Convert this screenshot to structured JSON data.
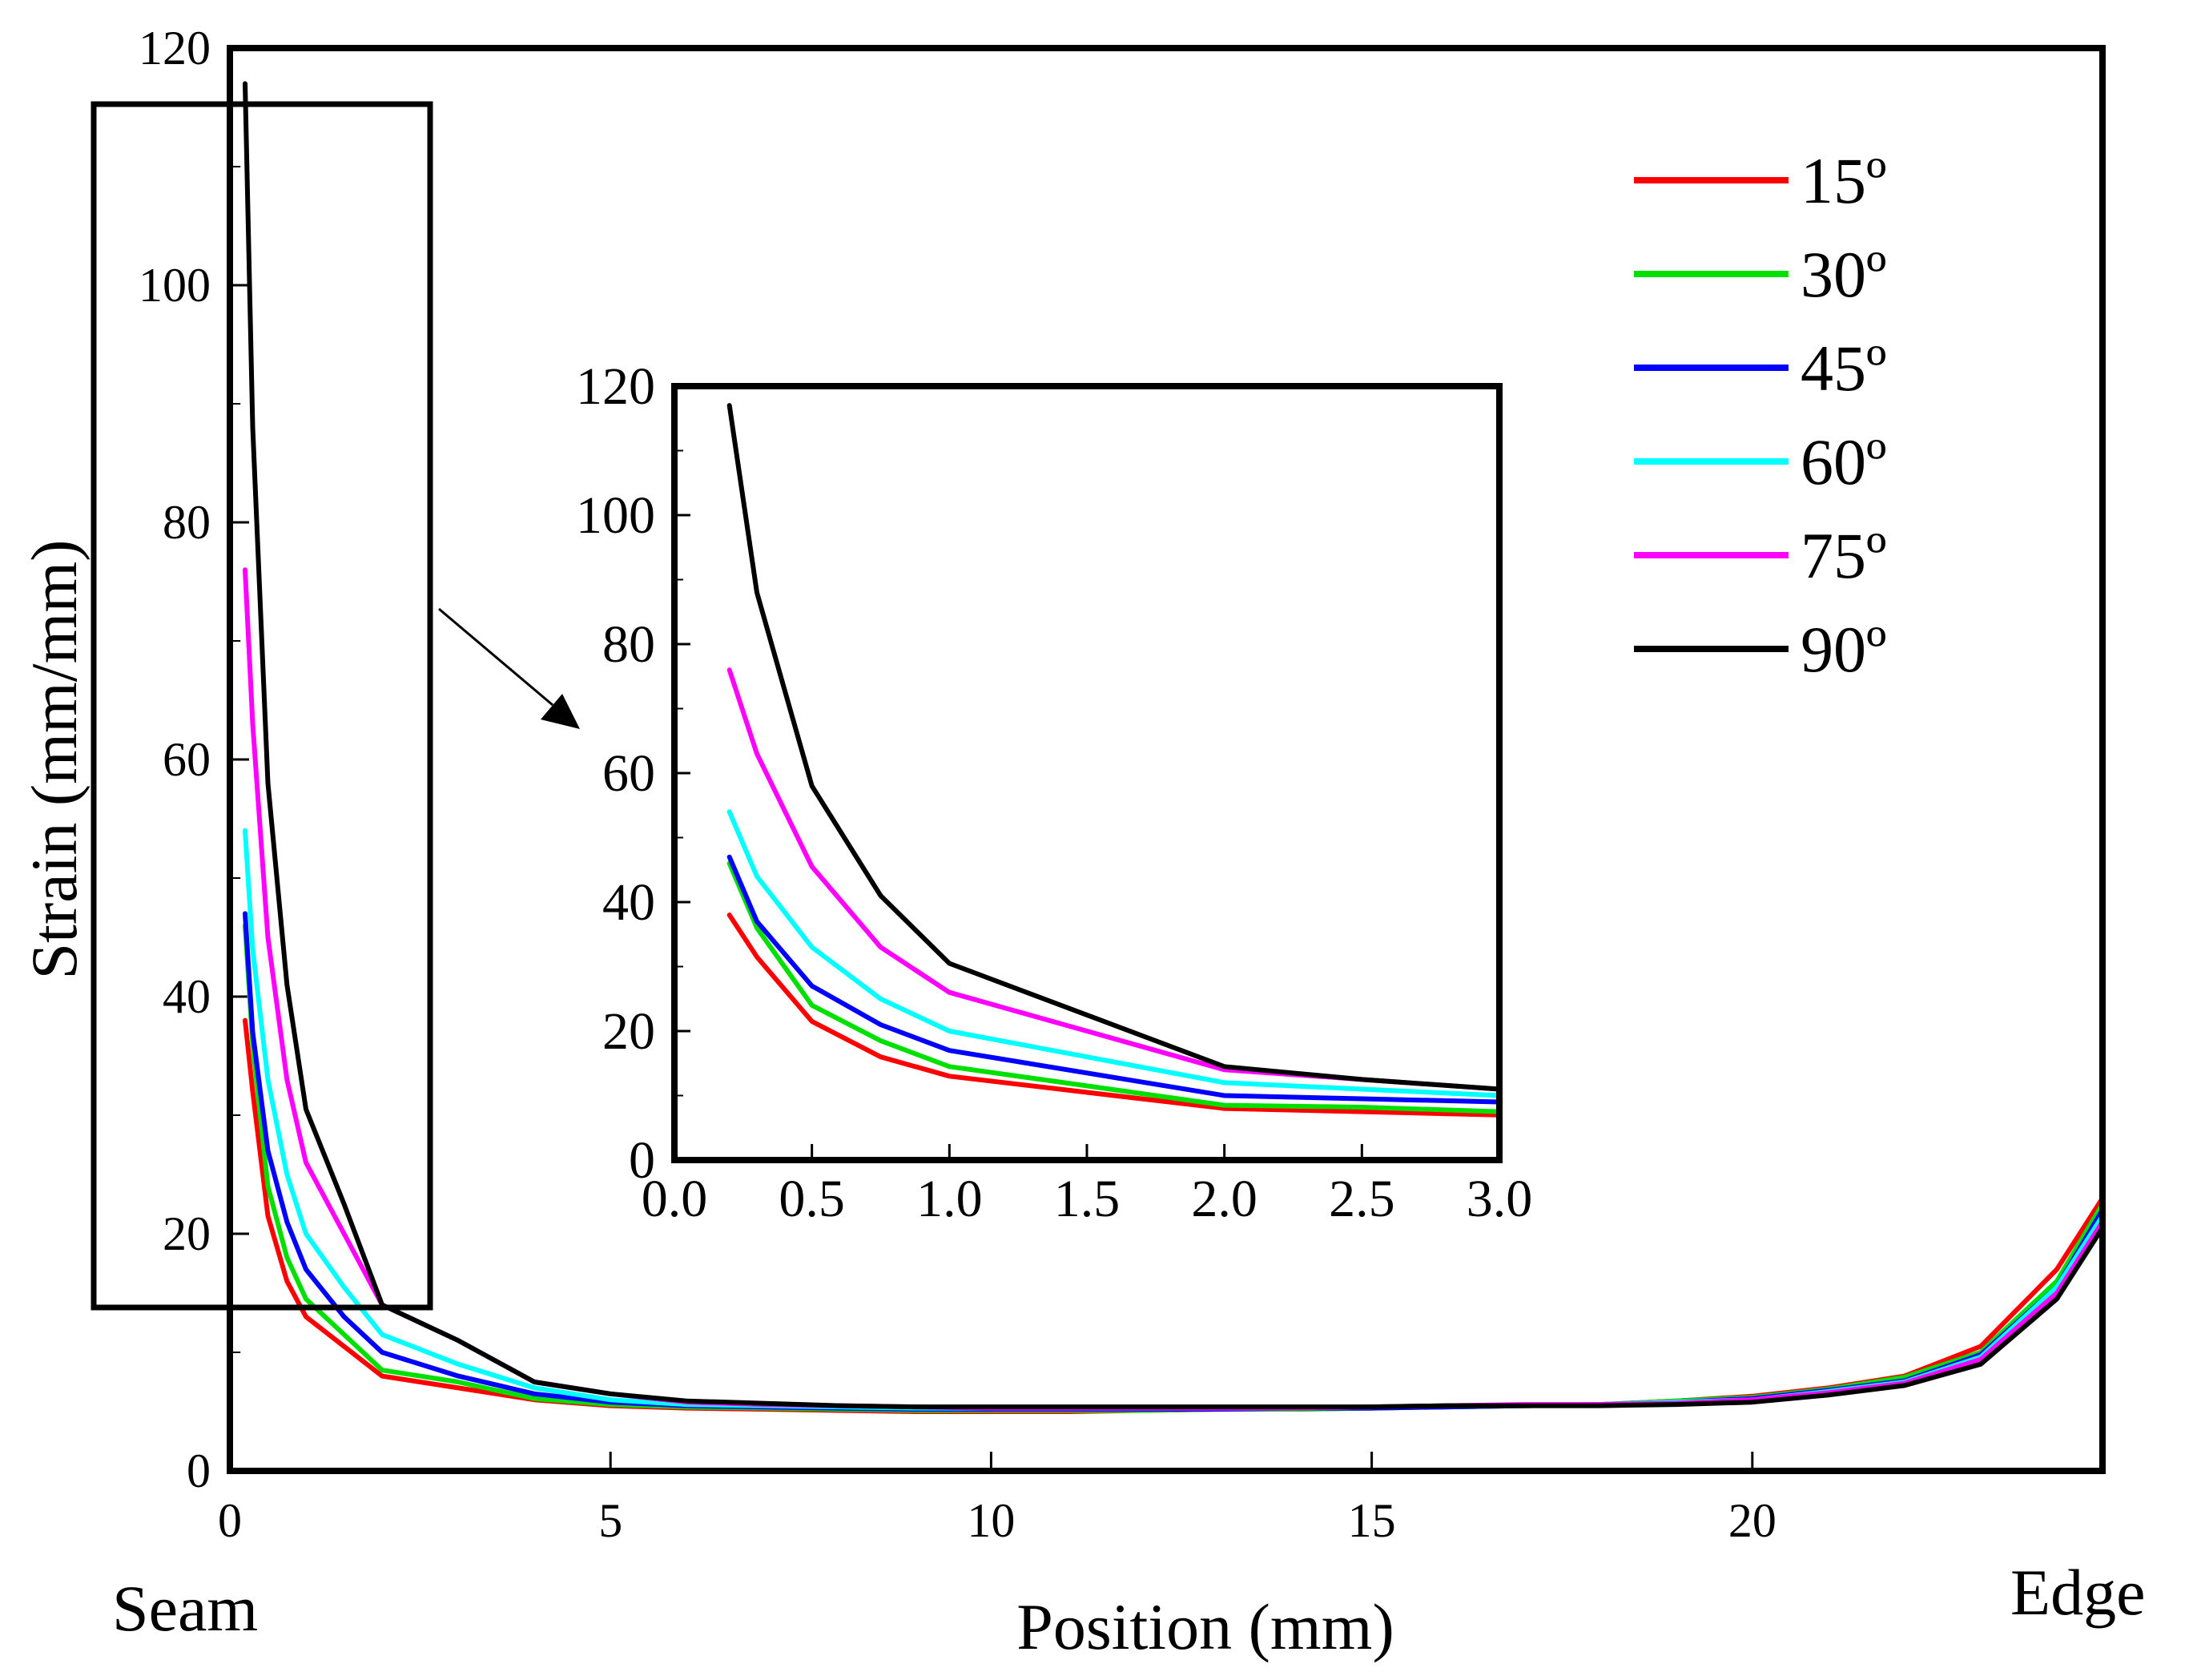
{
  "chart_data": [
    {
      "type": "line",
      "title": "",
      "xlabel": "Position (mm)",
      "ylabel": "Strain (mm/mm)",
      "xlim": [
        0,
        24.6
      ],
      "ylim": [
        0,
        120
      ],
      "xticks": [
        0,
        5,
        10,
        15,
        20
      ],
      "yticks": [
        0,
        20,
        40,
        60,
        80,
        100,
        120
      ],
      "start_label": "Seam",
      "end_label": "Edge",
      "legend_position": "top-right",
      "x": [
        0.2,
        0.3,
        0.5,
        0.75,
        1.0,
        1.5,
        2.0,
        3.0,
        4.0,
        5.0,
        6.0,
        7.0,
        8.0,
        9.0,
        10.0,
        11.0,
        12.0,
        13.0,
        14.0,
        15.0,
        16.0,
        17.0,
        18.0,
        19.0,
        20.0,
        21.0,
        22.0,
        23.0,
        24.0,
        24.6
      ],
      "series": [
        {
          "name": "15º",
          "color": "#ff0000",
          "values": [
            38,
            32,
            21.5,
            16,
            13,
            10.5,
            8,
            7,
            6,
            5.5,
            5.3,
            5.2,
            5.1,
            5.0,
            5.0,
            5.0,
            5.1,
            5.2,
            5.2,
            5.3,
            5.4,
            5.5,
            5.6,
            5.9,
            6.3,
            7,
            8,
            10.5,
            17,
            23
          ]
        },
        {
          "name": "30º",
          "color": "#00e000",
          "values": [
            46,
            36,
            24,
            18,
            14.5,
            11.5,
            8.5,
            7.5,
            6.1,
            5.6,
            5.4,
            5.3,
            5.2,
            5.1,
            5.1,
            5.1,
            5.1,
            5.2,
            5.2,
            5.3,
            5.4,
            5.5,
            5.6,
            5.9,
            6.2,
            6.9,
            7.9,
            10,
            16,
            22.5
          ]
        },
        {
          "name": "45º",
          "color": "#0000ff",
          "values": [
            47,
            37,
            27,
            21,
            17,
            13,
            10,
            8,
            6.5,
            5.8,
            5.5,
            5.4,
            5.3,
            5.2,
            5.2,
            5.2,
            5.2,
            5.2,
            5.3,
            5.3,
            5.4,
            5.5,
            5.6,
            5.8,
            6.1,
            6.8,
            7.6,
            9.8,
            15.5,
            22
          ]
        },
        {
          "name": "60º",
          "color": "#00ffff",
          "values": [
            54,
            44,
            33,
            25,
            20,
            15.5,
            11.5,
            9,
            7,
            6,
            5.6,
            5.5,
            5.4,
            5.3,
            5.3,
            5.3,
            5.3,
            5.3,
            5.3,
            5.4,
            5.5,
            5.5,
            5.6,
            5.8,
            6.0,
            6.7,
            7.5,
            9.6,
            15.5,
            21.5
          ]
        },
        {
          "name": "75º",
          "color": "#ff00ff",
          "values": [
            76,
            63,
            45,
            33,
            26,
            20,
            14,
            11,
            7.5,
            6.5,
            5.8,
            5.6,
            5.5,
            5.4,
            5.3,
            5.3,
            5.3,
            5.3,
            5.3,
            5.4,
            5.5,
            5.6,
            5.6,
            5.7,
            6.0,
            6.6,
            7.4,
            9.4,
            15,
            21
          ]
        },
        {
          "name": "90º",
          "color": "#000000",
          "values": [
            117,
            88,
            58,
            41,
            30.5,
            22.5,
            14,
            11,
            7.5,
            6.5,
            5.9,
            5.7,
            5.5,
            5.4,
            5.4,
            5.4,
            5.4,
            5.4,
            5.4,
            5.4,
            5.5,
            5.5,
            5.5,
            5.6,
            5.8,
            6.4,
            7.2,
            9.0,
            14.5,
            20.5
          ]
        }
      ]
    },
    {
      "type": "line",
      "title": "",
      "xlabel": "",
      "ylabel": "",
      "xlim": [
        0,
        3
      ],
      "ylim": [
        0,
        120
      ],
      "xticks": [
        0.0,
        0.5,
        1.0,
        1.5,
        2.0,
        2.5,
        3.0
      ],
      "xtick_labels": [
        "0.0",
        "0.5",
        "1.0",
        "1.5",
        "2.0",
        "2.5",
        "3.0"
      ],
      "yticks": [
        0,
        20,
        40,
        60,
        80,
        100,
        120
      ],
      "x": [
        0.2,
        0.3,
        0.5,
        0.75,
        1.0,
        1.5,
        2.0,
        2.5,
        3.0
      ],
      "series": [
        {
          "name": "15º",
          "color": "#ff0000",
          "values": [
            38,
            31.5,
            21.5,
            16,
            13,
            10.5,
            8,
            7.5,
            7
          ]
        },
        {
          "name": "30º",
          "color": "#00e000",
          "values": [
            46,
            36,
            24,
            18.5,
            14.5,
            11.5,
            8.5,
            8.2,
            7.5
          ]
        },
        {
          "name": "45º",
          "color": "#0000ff",
          "values": [
            47,
            37,
            27,
            21,
            17,
            13.5,
            10,
            9.5,
            9
          ]
        },
        {
          "name": "60º",
          "color": "#00ffff",
          "values": [
            54,
            44,
            33,
            25,
            20,
            16,
            12,
            11,
            10
          ]
        },
        {
          "name": "75º",
          "color": "#ff00ff",
          "values": [
            76,
            63,
            45.5,
            33,
            26,
            20,
            14,
            12.5,
            11
          ]
        },
        {
          "name": "90º",
          "color": "#000000",
          "values": [
            117,
            88,
            58,
            41,
            30.5,
            22.5,
            14.5,
            12.5,
            11
          ]
        }
      ]
    }
  ]
}
